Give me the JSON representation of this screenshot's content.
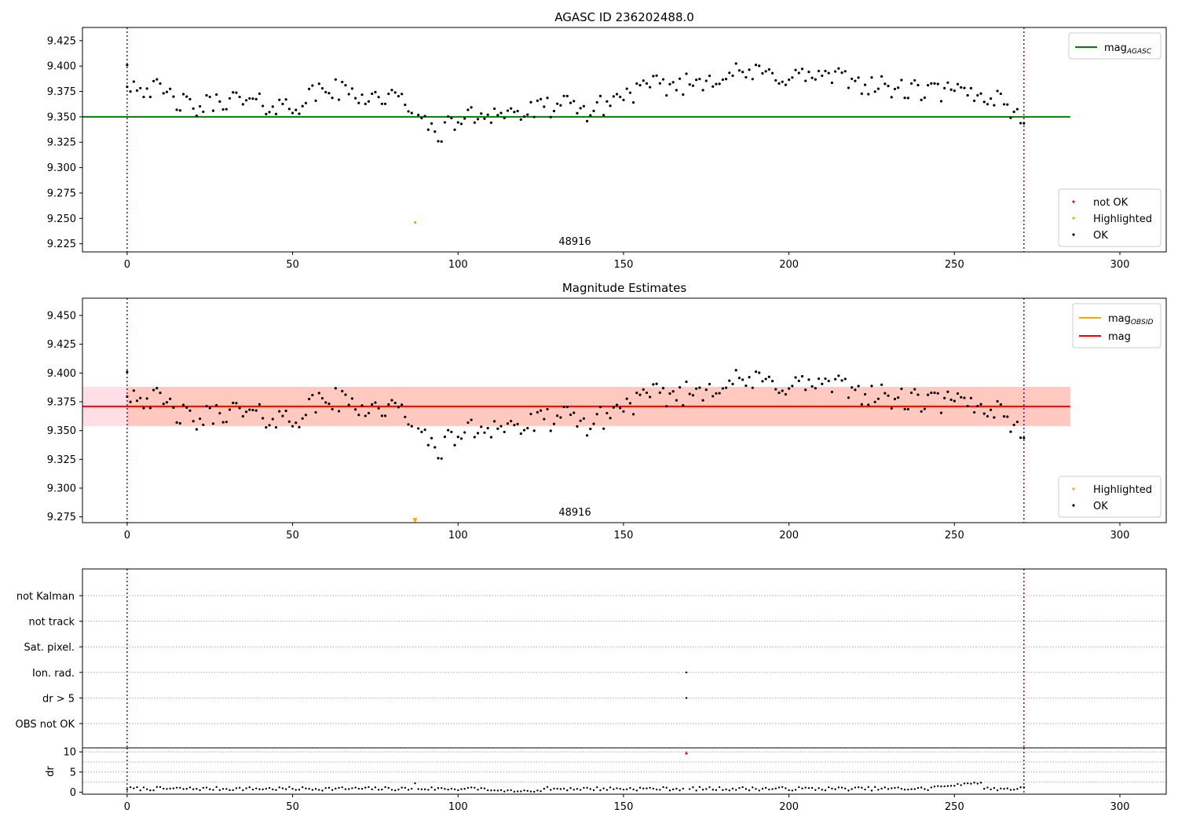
{
  "colors": {
    "ok": "#000000",
    "not_ok": "#ff0000",
    "highlighted": "#ffa500",
    "agasc_line": "#008000",
    "mag_line": "#ff0000",
    "obsid_line": "#ffa500",
    "vline": "#800080",
    "band_pink": "#ffc0cb",
    "band_orange": "#ffa07a"
  },
  "chart_data": [
    {
      "type": "scatter",
      "title": "AGASC ID 236202488.0",
      "annotation": "48916",
      "xlim": [
        -13.5,
        314
      ],
      "ylim": [
        9.217,
        9.438
      ],
      "xticks": [
        0,
        50,
        100,
        150,
        200,
        250,
        300
      ],
      "yticks": [
        9.225,
        9.25,
        9.275,
        9.3,
        9.325,
        9.35,
        9.375,
        9.4,
        9.425
      ],
      "ytick_labels": [
        "9.225",
        "9.250",
        "9.275",
        "9.300",
        "9.325",
        "9.350",
        "9.375",
        "9.400",
        "9.425"
      ],
      "vlines": [
        0,
        271
      ],
      "hline": {
        "y": 9.35,
        "x_end": 285
      },
      "legend_top": [
        {
          "label": "mag",
          "sub": "AGASC",
          "color_key": "agasc_line",
          "kind": "line"
        }
      ],
      "legend_bottom": [
        {
          "label": "not OK",
          "color_key": "not_ok",
          "kind": "dot"
        },
        {
          "label": "Highlighted",
          "color_key": "highlighted",
          "kind": "dot"
        },
        {
          "label": "OK",
          "color_key": "ok",
          "kind": "dot"
        }
      ],
      "series": [
        {
          "name": "Highlighted",
          "x": [
            87
          ],
          "y": [
            9.246
          ]
        }
      ]
    },
    {
      "type": "scatter",
      "title": "Magnitude Estimates",
      "annotation": "48916",
      "xlim": [
        -13.5,
        314
      ],
      "ylim": [
        9.27,
        9.465
      ],
      "xticks": [
        0,
        50,
        100,
        150,
        200,
        250,
        300
      ],
      "yticks": [
        9.275,
        9.3,
        9.325,
        9.35,
        9.375,
        9.4,
        9.425,
        9.45
      ],
      "ytick_labels": [
        "9.275",
        "9.300",
        "9.325",
        "9.350",
        "9.375",
        "9.400",
        "9.425",
        "9.450"
      ],
      "vlines": [
        0,
        271
      ],
      "mag": 9.371,
      "band": {
        "low": 9.354,
        "high": 9.388,
        "x_end": 285
      },
      "legend_top": [
        {
          "label": "mag",
          "sub": "OBSID",
          "color_key": "obsid_line",
          "kind": "line"
        },
        {
          "label": "mag",
          "sub": "",
          "color_key": "mag_line",
          "kind": "line"
        }
      ],
      "legend_bottom": [
        {
          "label": "Highlighted",
          "color_key": "highlighted",
          "kind": "dot"
        },
        {
          "label": "OK",
          "color_key": "ok",
          "kind": "dot"
        }
      ],
      "series": [
        {
          "name": "Highlighted",
          "x": [
            87
          ],
          "y": [
            9.272
          ]
        }
      ]
    },
    {
      "type": "scatter",
      "xlim": [
        -13.5,
        314
      ],
      "xticks": [
        0,
        50,
        100,
        150,
        200,
        250,
        300
      ],
      "vlines": [
        0,
        271
      ],
      "flag_labels": [
        "not Kalman",
        "not track",
        "Sat. pixel.",
        "Ion. rad.",
        "dr > 5",
        "OBS not OK"
      ],
      "flag_points": [
        {
          "flag": "Ion. rad.",
          "x": 169
        },
        {
          "flag": "dr > 5",
          "x": 169
        }
      ]
    },
    {
      "type": "scatter",
      "ylabel": "dr",
      "xlim": [
        -13.5,
        314
      ],
      "ylim": [
        -0.5,
        11
      ],
      "xticks": [
        0,
        50,
        100,
        150,
        200,
        250,
        300
      ],
      "yticks": [
        0,
        5,
        10
      ],
      "vlines": [
        0,
        271
      ],
      "not_ok_point": {
        "x": 169,
        "y": 9.8
      }
    }
  ]
}
